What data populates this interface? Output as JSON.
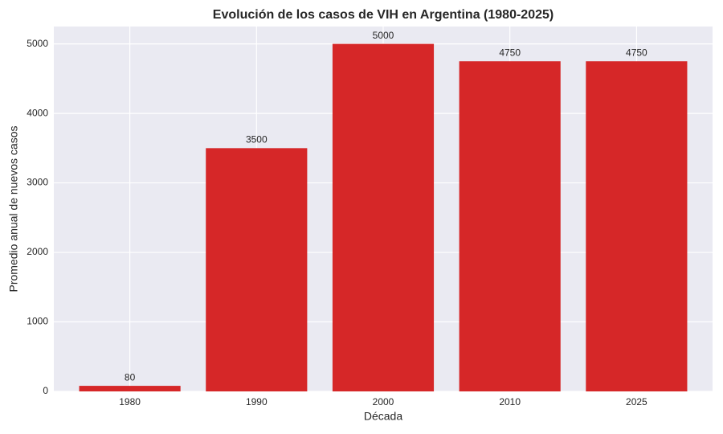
{
  "chart_data": {
    "type": "bar",
    "title": "Evolución de los casos de VIH en Argentina (1980-2025)",
    "x_label": "Década",
    "y_label": "Promedio anual de nuevos casos",
    "categories": [
      "1980",
      "1990",
      "2000",
      "2010",
      "2025"
    ],
    "values": [
      80,
      3500,
      5000,
      4750,
      4750
    ],
    "color": "#d62728",
    "ylim": [
      0,
      5250
    ],
    "yticks": [
      0,
      1000,
      2000,
      3000,
      4000,
      5000
    ],
    "grid": true
  }
}
